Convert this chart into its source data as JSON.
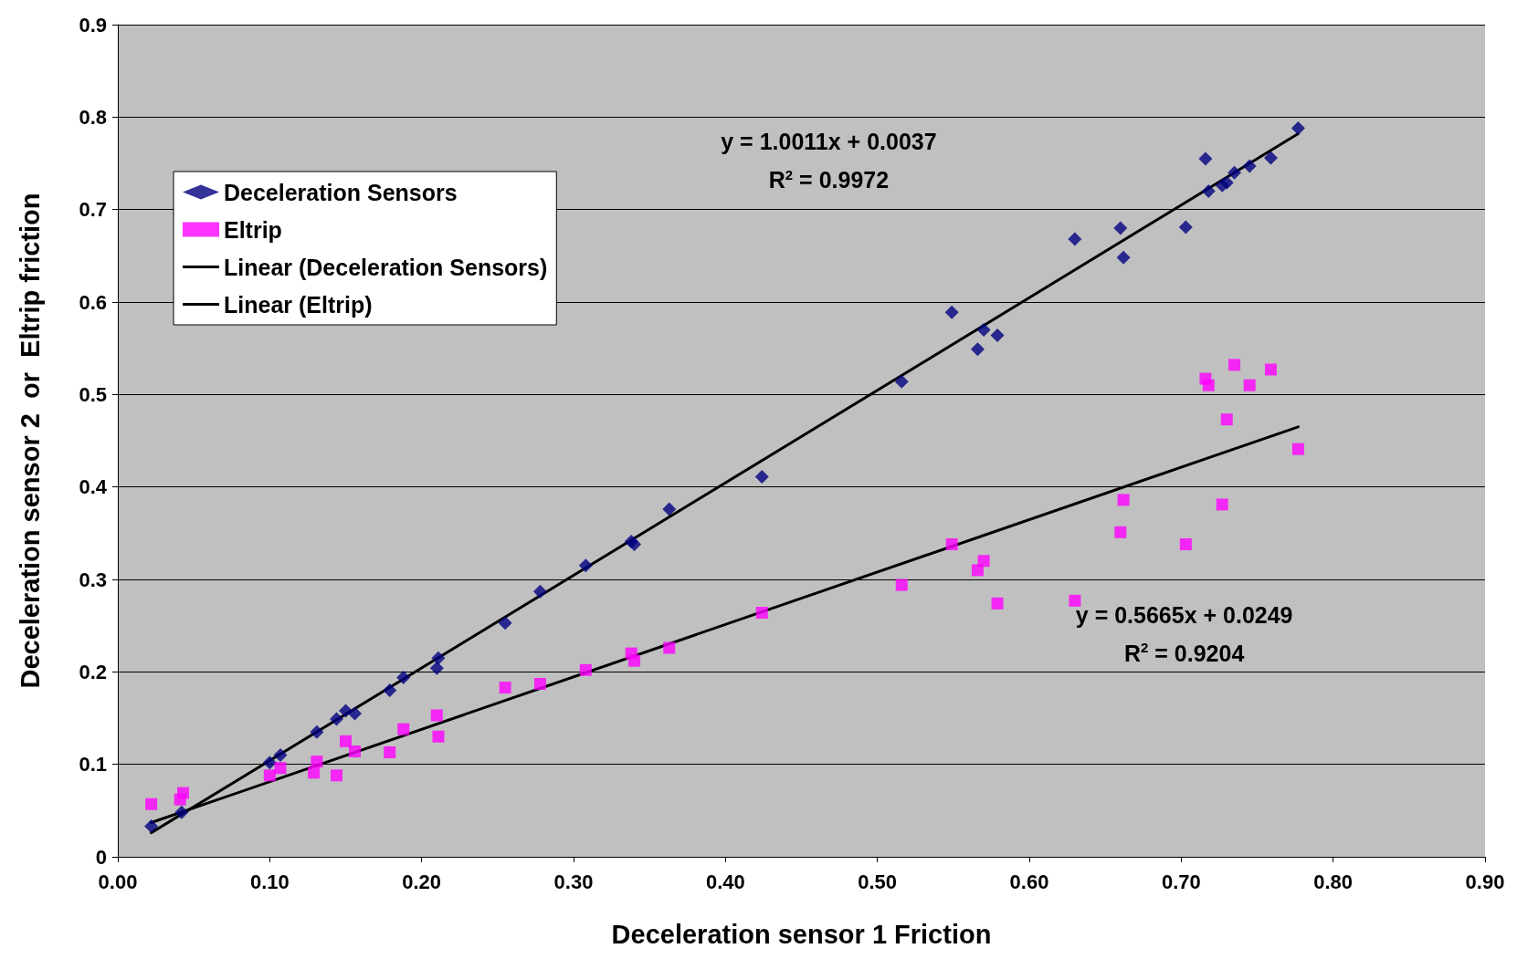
{
  "chart_data": {
    "type": "scatter",
    "xlabel": "Deceleration sensor 1 Friction",
    "ylabel": "Deceleration sensor 2  or  Eltrip friction",
    "x": [
      0.022,
      0.042,
      0.1,
      0.107,
      0.131,
      0.144,
      0.15,
      0.156,
      0.179,
      0.188,
      0.21,
      0.211,
      0.255,
      0.278,
      0.308,
      0.338,
      0.34,
      0.363,
      0.424,
      0.516,
      0.549,
      0.566,
      0.57,
      0.579,
      0.63,
      0.66,
      0.662,
      0.703,
      0.716,
      0.718,
      0.727,
      0.73,
      0.735,
      0.745,
      0.759,
      0.777
    ],
    "series": [
      {
        "name": "Deceleration Sensors",
        "color": "#000080",
        "marker": "diamond",
        "values": [
          0.033,
          0.048,
          0.102,
          0.11,
          0.135,
          0.149,
          0.158,
          0.155,
          0.18,
          0.194,
          0.204,
          0.215,
          0.253,
          0.287,
          0.315,
          0.341,
          0.338,
          0.376,
          0.411,
          0.514,
          0.589,
          0.549,
          0.57,
          0.564,
          0.668,
          0.68,
          0.648,
          0.681,
          0.755,
          0.72,
          0.726,
          0.729,
          0.74,
          0.747,
          0.756,
          0.788
        ]
      },
      {
        "name": "Eltrip",
        "color": "#ff00ff",
        "marker": "square",
        "x": [
          0.022,
          0.041,
          0.043,
          0.1,
          0.107,
          0.129,
          0.131,
          0.144,
          0.15,
          0.156,
          0.179,
          0.188,
          0.21,
          0.211,
          0.255,
          0.278,
          0.308,
          0.338,
          0.34,
          0.363,
          0.424,
          0.516,
          0.549,
          0.566,
          0.57,
          0.579,
          0.63,
          0.66,
          0.662,
          0.703,
          0.716,
          0.718,
          0.727,
          0.73,
          0.735,
          0.745,
          0.759,
          0.777
        ],
        "values": [
          0.057,
          0.062,
          0.069,
          0.088,
          0.096,
          0.091,
          0.103,
          0.088,
          0.125,
          0.114,
          0.113,
          0.138,
          0.153,
          0.13,
          0.183,
          0.187,
          0.202,
          0.22,
          0.212,
          0.226,
          0.264,
          0.294,
          0.338,
          0.31,
          0.32,
          0.274,
          0.277,
          0.351,
          0.386,
          0.338,
          0.517,
          0.51,
          0.381,
          0.473,
          0.532,
          0.51,
          0.527,
          0.441
        ]
      },
      {
        "name": "Linear (Deceleration Sensors)",
        "type": "line",
        "color": "#000000",
        "marker": "none",
        "x": [
          0.022,
          0.777
        ],
        "values": [
          0.026,
          0.782
        ]
      },
      {
        "name": "Linear (Eltrip)",
        "type": "line",
        "color": "#000000",
        "marker": "none",
        "x": [
          0.022,
          0.777
        ],
        "values": [
          0.037,
          0.465
        ]
      }
    ],
    "xlim": [
      0,
      0.9
    ],
    "xticks": [
      {
        "value": 0,
        "label": "0.00"
      },
      {
        "value": 0.1,
        "label": "0.10"
      },
      {
        "value": 0.2,
        "label": "0.20"
      },
      {
        "value": 0.3,
        "label": "0.30"
      },
      {
        "value": 0.4,
        "label": "0.40"
      },
      {
        "value": 0.5,
        "label": "0.50"
      },
      {
        "value": 0.6,
        "label": "0.60"
      },
      {
        "value": 0.7,
        "label": "0.70"
      },
      {
        "value": 0.8,
        "label": "0.80"
      },
      {
        "value": 0.9,
        "label": "0.90"
      }
    ],
    "ylim": [
      0,
      0.9
    ],
    "yticks": [
      0,
      0.1,
      0.2,
      0.3,
      0.4,
      0.5,
      0.6,
      0.7,
      0.8,
      0.9
    ],
    "grid": "y",
    "legend": "top left",
    "line_style": "solid",
    "annotations": [
      "y = 1.0011x + 0.0037",
      "R$^{2}$ = 0.9972",
      "y = 0.5665x + 0.0249",
      "R$^{2}$ = 0.9204"
    ]
  }
}
